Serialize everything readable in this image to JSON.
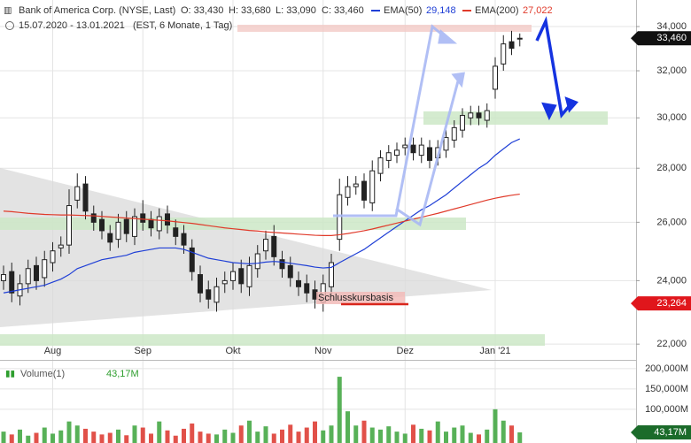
{
  "header": {
    "icon_title": "Bank of America Corp. (NYSE, Last)",
    "open": "O: 33,430",
    "high": "H: 33,680",
    "low": "L: 33,090",
    "close": "C: 33,460",
    "ema50_label": "EMA(50)",
    "ema50_value": "29,148",
    "ema200_label": "EMA(200)",
    "ema200_value": "27,022",
    "range": "15.07.2020 - 13.01.2021",
    "info": "(EST, 6 Monate, 1 Tag)"
  },
  "chart_data": {
    "type": "candlestick",
    "log_scale": true,
    "grid": true,
    "categories": [
      null,
      null,
      null,
      null,
      null,
      null,
      "Aug",
      null,
      null,
      null,
      null,
      null,
      null,
      null,
      null,
      null,
      null,
      "Sep",
      null,
      null,
      null,
      null,
      null,
      null,
      null,
      null,
      null,
      null,
      "Okt",
      null,
      null,
      null,
      null,
      null,
      null,
      null,
      null,
      null,
      null,
      "Nov",
      null,
      null,
      null,
      null,
      null,
      null,
      null,
      null,
      null,
      "Dez",
      null,
      null,
      null,
      null,
      null,
      null,
      null,
      null,
      null,
      null,
      "Jan '21",
      null,
      null,
      null
    ],
    "open": [
      24000,
      24300,
      23500,
      23900,
      24500,
      24100,
      24600,
      25100,
      25200,
      26800,
      27400,
      26300,
      26100,
      25600,
      25400,
      26100,
      25500,
      26300,
      26100,
      25700,
      26300,
      25800,
      25600,
      25100,
      24200,
      23700,
      23300,
      23900,
      24000,
      24400,
      23800,
      24400,
      25000,
      25500,
      24700,
      24500,
      24000,
      23900,
      23700,
      23300,
      23800,
      25400,
      26900,
      27300,
      27500,
      26700,
      27800,
      28300,
      28500,
      28800,
      28900,
      28500,
      28800,
      28400,
      28700,
      29100,
      29500,
      30000,
      30200,
      29900,
      31200,
      32300,
      33300,
      33430
    ],
    "high": [
      24500,
      24600,
      24200,
      24700,
      24800,
      25000,
      25300,
      25500,
      27200,
      27800,
      27700,
      26600,
      26400,
      25900,
      26300,
      26400,
      26500,
      26800,
      26400,
      26500,
      26600,
      26100,
      25900,
      25400,
      24500,
      24000,
      24100,
      24300,
      24600,
      24700,
      24800,
      25200,
      25700,
      25900,
      25000,
      24800,
      24300,
      24200,
      24000,
      24200,
      24900,
      27600,
      27700,
      27700,
      27800,
      28300,
      28700,
      28900,
      29000,
      29200,
      29200,
      29200,
      29100,
      29100,
      29500,
      29900,
      30400,
      30500,
      30500,
      30600,
      32600,
      33600,
      33800,
      33680
    ],
    "low": [
      23700,
      23300,
      23200,
      23600,
      23700,
      23800,
      24300,
      24800,
      24900,
      26500,
      26100,
      25700,
      25400,
      25000,
      25100,
      25300,
      25200,
      25700,
      25500,
      25400,
      25600,
      25200,
      24900,
      24000,
      23300,
      23100,
      23000,
      23600,
      23700,
      23600,
      23500,
      24100,
      24700,
      24500,
      24100,
      23800,
      23500,
      23300,
      23100,
      23000,
      23500,
      25000,
      26600,
      27000,
      26500,
      26400,
      27500,
      28000,
      28200,
      28500,
      28300,
      28200,
      28000,
      28100,
      28400,
      28800,
      29200,
      29700,
      29700,
      29600,
      30800,
      32000,
      32700,
      33090
    ],
    "close": [
      24200,
      23600,
      23900,
      24400,
      24000,
      24700,
      25000,
      25200,
      26600,
      27300,
      26400,
      26000,
      25700,
      25300,
      26000,
      25600,
      26200,
      26000,
      25800,
      26200,
      25900,
      25500,
      25200,
      24300,
      23600,
      23400,
      23800,
      24000,
      24300,
      23900,
      24500,
      24900,
      25400,
      24800,
      24400,
      24100,
      23800,
      23600,
      23400,
      23900,
      24600,
      27000,
      27300,
      27400,
      26800,
      27900,
      28400,
      28600,
      28700,
      28900,
      28600,
      28900,
      28300,
      28800,
      29200,
      29600,
      30100,
      30200,
      30000,
      30300,
      32200,
      33200,
      33000,
      33460
    ],
    "up_color": "#2e9e2e",
    "down_color": "#d9261c",
    "series": [
      {
        "name": "EMA(50)",
        "color": "#1f3fd6",
        "values": [
          23600,
          23650,
          23700,
          23750,
          23800,
          23850,
          23950,
          24050,
          24200,
          24400,
          24500,
          24600,
          24700,
          24750,
          24800,
          24850,
          24950,
          25000,
          25050,
          25100,
          25100,
          25100,
          25050,
          24950,
          24850,
          24750,
          24700,
          24650,
          24600,
          24580,
          24560,
          24580,
          24620,
          24640,
          24620,
          24580,
          24540,
          24500,
          24450,
          24420,
          24440,
          24600,
          24750,
          24900,
          25050,
          25250,
          25450,
          25650,
          25850,
          26050,
          26250,
          26450,
          26600,
          26800,
          27000,
          27250,
          27500,
          27750,
          28000,
          28200,
          28500,
          28750,
          29000,
          29148
        ]
      },
      {
        "name": "EMA(200)",
        "color": "#e03a2a",
        "values": [
          26400,
          26380,
          26350,
          26320,
          26300,
          26280,
          26270,
          26260,
          26260,
          26250,
          26240,
          26230,
          26210,
          26190,
          26170,
          26150,
          26130,
          26110,
          26090,
          26070,
          26050,
          26020,
          25990,
          25960,
          25920,
          25880,
          25840,
          25800,
          25770,
          25740,
          25710,
          25690,
          25660,
          25640,
          25620,
          25600,
          25580,
          25560,
          25540,
          25530,
          25530,
          25560,
          25600,
          25650,
          25700,
          25760,
          25830,
          25900,
          25970,
          26040,
          26110,
          26180,
          26250,
          26320,
          26400,
          26480,
          26560,
          26640,
          26720,
          26800,
          26870,
          26930,
          26980,
          27022
        ]
      }
    ],
    "ylim": [
      21530,
      35260
    ],
    "yticks": [
      {
        "value": 22000,
        "label": "22,000"
      },
      {
        "value": 24000,
        "label": "24,000"
      },
      {
        "value": 26000,
        "label": "26,000"
      },
      {
        "value": 28000,
        "label": "28,000"
      },
      {
        "value": 30000,
        "label": "30,000"
      },
      {
        "value": 32000,
        "label": "32,000"
      },
      {
        "value": 34000,
        "label": "34,000"
      }
    ],
    "last_price": {
      "value": 33460,
      "label": "33,460"
    },
    "base_price": {
      "value": 23264,
      "label": "23,264"
    },
    "annotation": "Schlusskursbasis",
    "volume": {
      "title": "Volume(1)",
      "title_value": "43,17M",
      "values": [
        45,
        38,
        50,
        35,
        42,
        55,
        40,
        48,
        70,
        60,
        52,
        45,
        38,
        42,
        50,
        36,
        60,
        55,
        40,
        70,
        48,
        35,
        52,
        65,
        45,
        40,
        38,
        50,
        42,
        60,
        72,
        45,
        58,
        40,
        50,
        62,
        45,
        55,
        70,
        48,
        60,
        180,
        95,
        60,
        72,
        55,
        50,
        58,
        45,
        40,
        62,
        52,
        48,
        70,
        45,
        55,
        60,
        42,
        38,
        50,
        100,
        72,
        60,
        43.17
      ],
      "ylim": [
        17,
        215
      ],
      "yticks": [
        {
          "value": 100,
          "label": "100,000M"
        },
        {
          "value": 150,
          "label": "150,000M"
        },
        {
          "value": 200,
          "label": "200,000M"
        }
      ],
      "last": {
        "value": 43.17,
        "label": "43,17M"
      }
    }
  }
}
